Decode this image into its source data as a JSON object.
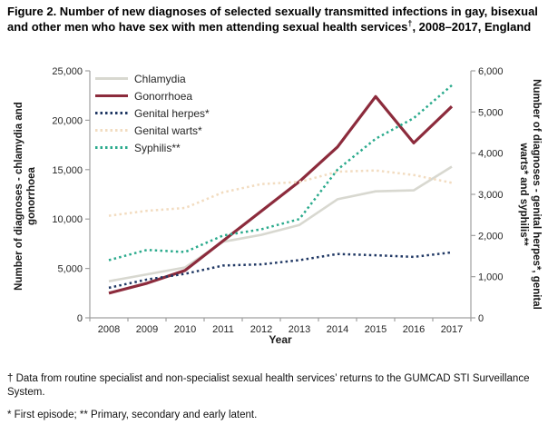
{
  "page": {
    "title_before": "Figure 2. Number of new diagnoses of selected sexually transmitted infections in gay, bisexual and other men who have sex with men attending sexual health services",
    "title_dagger": "†",
    "title_after": ", 2008–2017, England",
    "footnote_1": "† Data from routine specialist and non-specialist sexual health services’ returns to the GUMCAD STI Surveillance System.",
    "footnote_2": "* First episode; ** Primary, secondary and early latent."
  },
  "chart_data": {
    "type": "line",
    "x_label": "Year",
    "x_categories": [
      "2008",
      "2009",
      "2010",
      "2011",
      "2012",
      "2013",
      "2014",
      "2015",
      "2016",
      "2017"
    ],
    "grid": false,
    "legend_position": "top-left-inside",
    "left_axis": {
      "label": "Number of diagnoses - chlamydia and gonorrhoea",
      "min": 0,
      "max": 25000,
      "step": 5000,
      "tick_labels": [
        "0",
        "5,000",
        "10,000",
        "15,000",
        "20,000",
        "25,000"
      ]
    },
    "right_axis": {
      "label": "Number of diagnoses - genital herpes*, genital warts* and syphilis**",
      "min": 0,
      "max": 6000,
      "step": 1000,
      "tick_labels": [
        "0",
        "1,000",
        "2,000",
        "3,000",
        "4,000",
        "5,000",
        "6,000"
      ]
    },
    "series": [
      {
        "name": "Chlamydia",
        "axis": "left",
        "line_style": "solid",
        "color": "#d8d8d0",
        "values": [
          3700,
          4400,
          5100,
          7700,
          8400,
          9400,
          12000,
          12800,
          12900,
          15300
        ]
      },
      {
        "name": "Gonorrhoea",
        "axis": "left",
        "line_style": "solid",
        "color": "#8c2b3c",
        "values": [
          2500,
          3500,
          4800,
          7800,
          10800,
          13800,
          17300,
          22400,
          17700,
          21400
        ]
      },
      {
        "name": "Genital herpes*",
        "axis": "right",
        "line_style": "dotted",
        "color": "#203864",
        "values": [
          730,
          930,
          1070,
          1270,
          1300,
          1400,
          1550,
          1520,
          1480,
          1590
        ]
      },
      {
        "name": "Genital warts*",
        "axis": "right",
        "line_style": "dotted",
        "color": "#f2dcc0",
        "values": [
          2480,
          2600,
          2670,
          3050,
          3250,
          3300,
          3550,
          3580,
          3470,
          3280
        ]
      },
      {
        "name": "Syphilis**",
        "axis": "right",
        "line_style": "dotted",
        "color": "#2aaa8c",
        "values": [
          1400,
          1650,
          1600,
          2000,
          2150,
          2400,
          3600,
          4350,
          4850,
          5650
        ]
      }
    ]
  }
}
